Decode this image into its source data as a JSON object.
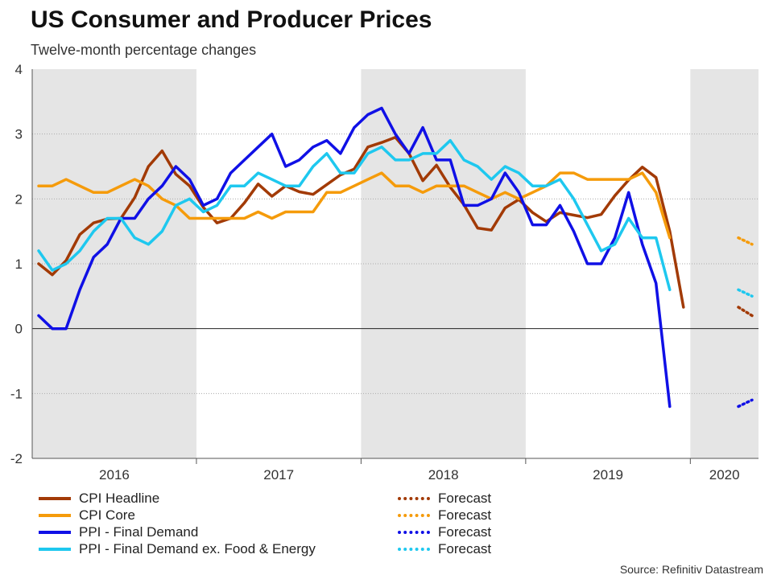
{
  "title": "US Consumer and Producer Prices",
  "subtitle": "Twelve-month percentage changes",
  "source": "Source: Refinitiv Datastream",
  "chart_data": {
    "type": "line",
    "ylim": [
      -2,
      4
    ],
    "y_ticks": [
      "-2",
      "-1",
      "0",
      "1",
      "2",
      "3",
      "4"
    ],
    "x_labels": [
      "2016",
      "2017",
      "2018",
      "2019",
      "2020"
    ],
    "grid": true,
    "zero_line": true,
    "shaded_bands": "alternate years (2016, 2018, 2020)",
    "months": [
      "2016-01",
      "2016-02",
      "2016-03",
      "2016-04",
      "2016-05",
      "2016-06",
      "2016-07",
      "2016-08",
      "2016-09",
      "2016-10",
      "2016-11",
      "2016-12",
      "2017-01",
      "2017-02",
      "2017-03",
      "2017-04",
      "2017-05",
      "2017-06",
      "2017-07",
      "2017-08",
      "2017-09",
      "2017-10",
      "2017-11",
      "2017-12",
      "2018-01",
      "2018-02",
      "2018-03",
      "2018-04",
      "2018-05",
      "2018-06",
      "2018-07",
      "2018-08",
      "2018-09",
      "2018-10",
      "2018-11",
      "2018-12",
      "2019-01",
      "2019-02",
      "2019-03",
      "2019-04",
      "2019-05",
      "2019-06",
      "2019-07",
      "2019-08",
      "2019-09",
      "2019-10",
      "2019-11",
      "2019-12",
      "2020-01",
      "2020-02",
      "2020-03",
      "2020-04",
      "2020-05"
    ],
    "forecast_months": [
      "2020-04",
      "2020-05"
    ],
    "series": [
      {
        "name": "CPI Headline",
        "color": "#a23a06",
        "forecast_label": "Forecast",
        "values": [
          1.0,
          0.83,
          1.05,
          1.45,
          1.63,
          1.69,
          1.7,
          2.02,
          2.5,
          2.74,
          2.38,
          2.2,
          1.87,
          1.63,
          1.7,
          1.94,
          2.23,
          2.04,
          2.2,
          2.11,
          2.07,
          2.22,
          2.37,
          2.46,
          2.8,
          2.87,
          2.95,
          2.7,
          2.28,
          2.52,
          2.18,
          1.91,
          1.55,
          1.52,
          1.86,
          1.99,
          1.79,
          1.65,
          1.79,
          1.75,
          1.71,
          1.76,
          2.05,
          2.29,
          2.49,
          2.33,
          1.5,
          0.33
        ],
        "forecast": [
          0.33,
          0.2
        ]
      },
      {
        "name": "CPI Core",
        "color": "#f59b0b",
        "forecast_label": "Forecast",
        "values": [
          2.2,
          2.2,
          2.3,
          2.2,
          2.1,
          2.1,
          2.2,
          2.3,
          2.2,
          2.0,
          1.9,
          1.7,
          1.7,
          1.7,
          1.7,
          1.7,
          1.8,
          1.7,
          1.8,
          1.8,
          1.8,
          2.1,
          2.1,
          2.2,
          2.3,
          2.4,
          2.2,
          2.2,
          2.1,
          2.2,
          2.2,
          2.2,
          2.1,
          2.0,
          2.1,
          2.0,
          2.1,
          2.2,
          2.4,
          2.4,
          2.3,
          2.3,
          2.3,
          2.3,
          2.4,
          2.1,
          1.4
        ],
        "forecast": [
          1.4,
          1.3
        ]
      },
      {
        "name": "PPI - Final Demand",
        "color": "#1010e6",
        "forecast_label": "Forecast",
        "values": [
          0.2,
          0.0,
          0.0,
          0.6,
          1.1,
          1.3,
          1.7,
          1.7,
          2.0,
          2.2,
          2.5,
          2.3,
          1.9,
          2.0,
          2.4,
          2.6,
          2.8,
          3.0,
          2.5,
          2.6,
          2.8,
          2.9,
          2.7,
          3.1,
          3.3,
          3.4,
          3.0,
          2.7,
          3.1,
          2.6,
          2.6,
          1.9,
          1.9,
          2.0,
          2.4,
          2.1,
          1.6,
          1.6,
          1.9,
          1.5,
          1.0,
          1.0,
          1.4,
          2.1,
          1.3,
          0.7,
          -1.2
        ],
        "forecast": [
          -1.2,
          -1.1
        ]
      },
      {
        "name": "PPI - Final Demand ex. Food & Energy",
        "color": "#1ec8ef",
        "forecast_label": "Forecast",
        "values": [
          1.2,
          0.9,
          1.0,
          1.2,
          1.5,
          1.7,
          1.7,
          1.4,
          1.3,
          1.5,
          1.9,
          2.0,
          1.8,
          1.9,
          2.2,
          2.2,
          2.4,
          2.3,
          2.2,
          2.2,
          2.5,
          2.7,
          2.4,
          2.4,
          2.7,
          2.8,
          2.6,
          2.6,
          2.7,
          2.7,
          2.9,
          2.6,
          2.5,
          2.3,
          2.5,
          2.4,
          2.2,
          2.2,
          2.3,
          2.0,
          1.6,
          1.2,
          1.3,
          1.7,
          1.4,
          1.4,
          0.6
        ],
        "forecast": [
          0.6,
          0.5
        ]
      }
    ]
  }
}
